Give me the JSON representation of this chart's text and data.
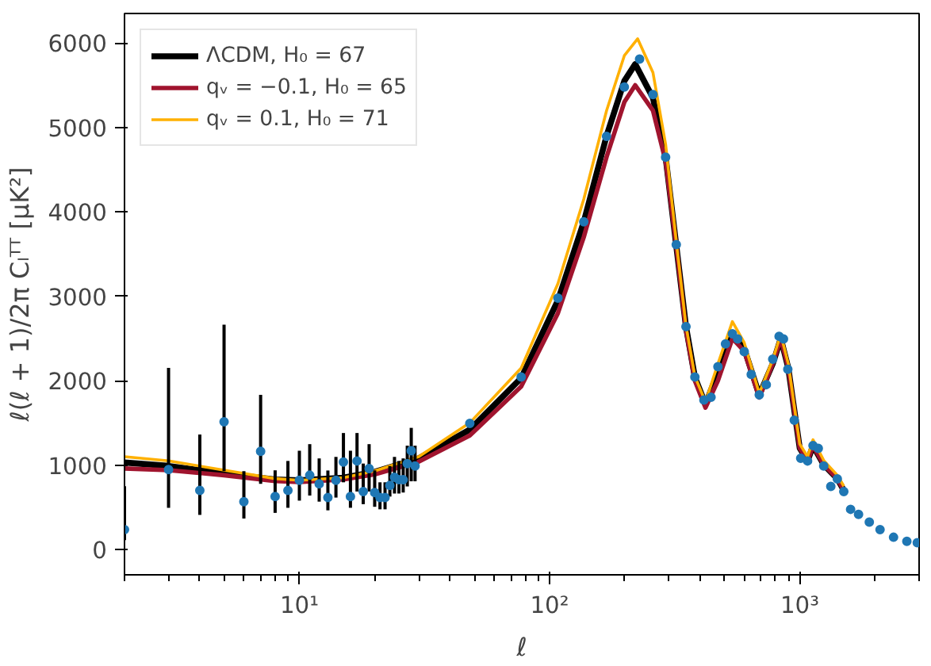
{
  "chart_data": {
    "type": "line",
    "xlabel": "ℓ",
    "ylabel": "ℓ(ℓ + 1)/2π Cₗᵀᵀ [μK²]",
    "log": "x",
    "xlim": [
      2,
      3000
    ],
    "ylim": [
      -300,
      6350
    ],
    "xticks": [
      {
        "value": 10,
        "label": "10¹"
      },
      {
        "value": 100,
        "label": "10²"
      },
      {
        "value": 1000,
        "label": "10³"
      }
    ],
    "yticks": [
      0,
      1000,
      2000,
      3000,
      4000,
      5000,
      6000
    ],
    "grid": false,
    "legend": "top left",
    "series": [
      {
        "type": "scatter",
        "color": "#1f77b4",
        "marker": "circle",
        "x": [
          2,
          3,
          4,
          5,
          6,
          7,
          8,
          9,
          10,
          11,
          12,
          13,
          14,
          15,
          16,
          17,
          18,
          19,
          20,
          21,
          22,
          23,
          24,
          25,
          26,
          27,
          28,
          29,
          48,
          77,
          108,
          137,
          169,
          199,
          229,
          259,
          291,
          321,
          351,
          381,
          414,
          442,
          471,
          505,
          538,
          565,
          600,
          640,
          689,
          735,
          780,
          827,
          861,
          896,
          951,
          1009,
          1075,
          1130,
          1186,
          1247,
          1331,
          1413,
          1500,
          1597,
          1718,
          1897,
          2094,
          2371,
          2680,
          2950
        ],
        "values": [
          235,
          946,
          700,
          1513,
          566,
          1163,
          627,
          700,
          820,
          880,
          778,
          615,
          820,
          1036,
          627,
          1049,
          687,
          958,
          675,
          615,
          615,
          760,
          856,
          826,
          826,
          1018,
          1170,
          989,
          1495,
          2043,
          2978,
          3882,
          4895,
          5479,
          5810,
          5389,
          4647,
          3611,
          2640,
          2043,
          1772,
          1803,
          2165,
          2436,
          2555,
          2495,
          2345,
          2074,
          1832,
          1953,
          2255,
          2526,
          2495,
          2134,
          1532,
          1080,
          1049,
          1230,
          1199,
          989,
          747,
          837,
          687,
          476,
          416,
          325,
          235,
          145,
          96,
          80
        ],
        "errors": [
          [
            110,
            750
          ],
          [
            494,
            2152
          ],
          [
            410,
            1362
          ],
          [
            928,
            2664
          ],
          [
            367,
            928
          ],
          [
            778,
            1832
          ],
          [
            434,
            938
          ],
          [
            494,
            1049
          ],
          [
            579,
            1170
          ],
          [
            639,
            1248
          ],
          [
            567,
            1079
          ],
          [
            464,
            936
          ],
          [
            615,
            1097
          ],
          [
            796,
            1380
          ],
          [
            494,
            1170
          ],
          [
            687,
            1380
          ],
          [
            537,
            1018
          ],
          [
            687,
            1248
          ],
          [
            506,
            938
          ],
          [
            476,
            796
          ],
          [
            476,
            796
          ],
          [
            627,
            989
          ],
          [
            663,
            1097
          ],
          [
            663,
            1049
          ],
          [
            675,
            1079
          ],
          [
            747,
            1230
          ],
          [
            808,
            1441
          ],
          [
            808,
            1230
          ],
          null,
          null,
          null,
          null,
          null,
          null,
          null,
          null,
          null,
          null,
          null,
          null,
          null,
          null,
          null,
          null,
          null,
          null,
          null,
          null,
          null,
          null,
          null,
          null,
          null,
          null,
          null,
          null,
          null,
          null,
          null,
          null,
          null,
          null,
          null,
          null,
          null,
          null,
          null,
          null,
          null,
          null
        ]
      },
      {
        "name": "ΛCDM, H₀ = 67",
        "color": "#000000",
        "x": [
          2,
          3,
          5,
          8,
          10,
          15,
          20,
          30,
          48,
          77,
          108,
          137,
          169,
          199,
          220,
          259,
          291,
          321,
          351,
          381,
          420,
          471,
          538,
          600,
          689,
          780,
          840,
          900,
          1000,
          1075,
          1130,
          1250,
          1413,
          1500
        ],
        "values": [
          1030,
          990,
          900,
          830,
          820,
          850,
          920,
          1080,
          1420,
          2030,
          2950,
          3880,
          4900,
          5550,
          5750,
          5350,
          4650,
          3600,
          2640,
          2040,
          1720,
          2100,
          2550,
          2380,
          1830,
          2200,
          2500,
          2150,
          1200,
          1050,
          1230,
          1000,
          840,
          700
        ]
      },
      {
        "name": "qᵥ = −0.1, H₀ = 65",
        "color": "#a0142e",
        "x": [
          2,
          3,
          5,
          8,
          10,
          15,
          20,
          30,
          48,
          77,
          108,
          137,
          169,
          199,
          220,
          259,
          291,
          321,
          351,
          381,
          420,
          471,
          538,
          600,
          689,
          780,
          840,
          900,
          1000,
          1075,
          1130,
          1250,
          1413,
          1500
        ],
        "values": [
          960,
          940,
          880,
          810,
          800,
          830,
          890,
          1040,
          1350,
          1930,
          2800,
          3700,
          4650,
          5300,
          5500,
          5200,
          4600,
          3600,
          2600,
          2000,
          1680,
          2000,
          2500,
          2350,
          1800,
          2200,
          2500,
          2150,
          1200,
          1050,
          1230,
          1000,
          840,
          700
        ]
      },
      {
        "name": "qᵥ = 0.1, H₀ = 71",
        "color": "#ffb000",
        "x": [
          2,
          3,
          5,
          8,
          10,
          15,
          20,
          30,
          48,
          77,
          108,
          137,
          169,
          199,
          225,
          259,
          291,
          321,
          351,
          381,
          420,
          471,
          538,
          600,
          689,
          780,
          840,
          900,
          1000,
          1075,
          1130,
          1250,
          1413,
          1500
        ],
        "values": [
          1100,
          1050,
          940,
          840,
          820,
          850,
          930,
          1100,
          1500,
          2150,
          3150,
          4150,
          5200,
          5850,
          6050,
          5650,
          4800,
          3650,
          2650,
          2050,
          1750,
          2200,
          2700,
          2450,
          1850,
          2250,
          2550,
          2200,
          1250,
          1100,
          1300,
          1050,
          880,
          750
        ]
      }
    ]
  }
}
